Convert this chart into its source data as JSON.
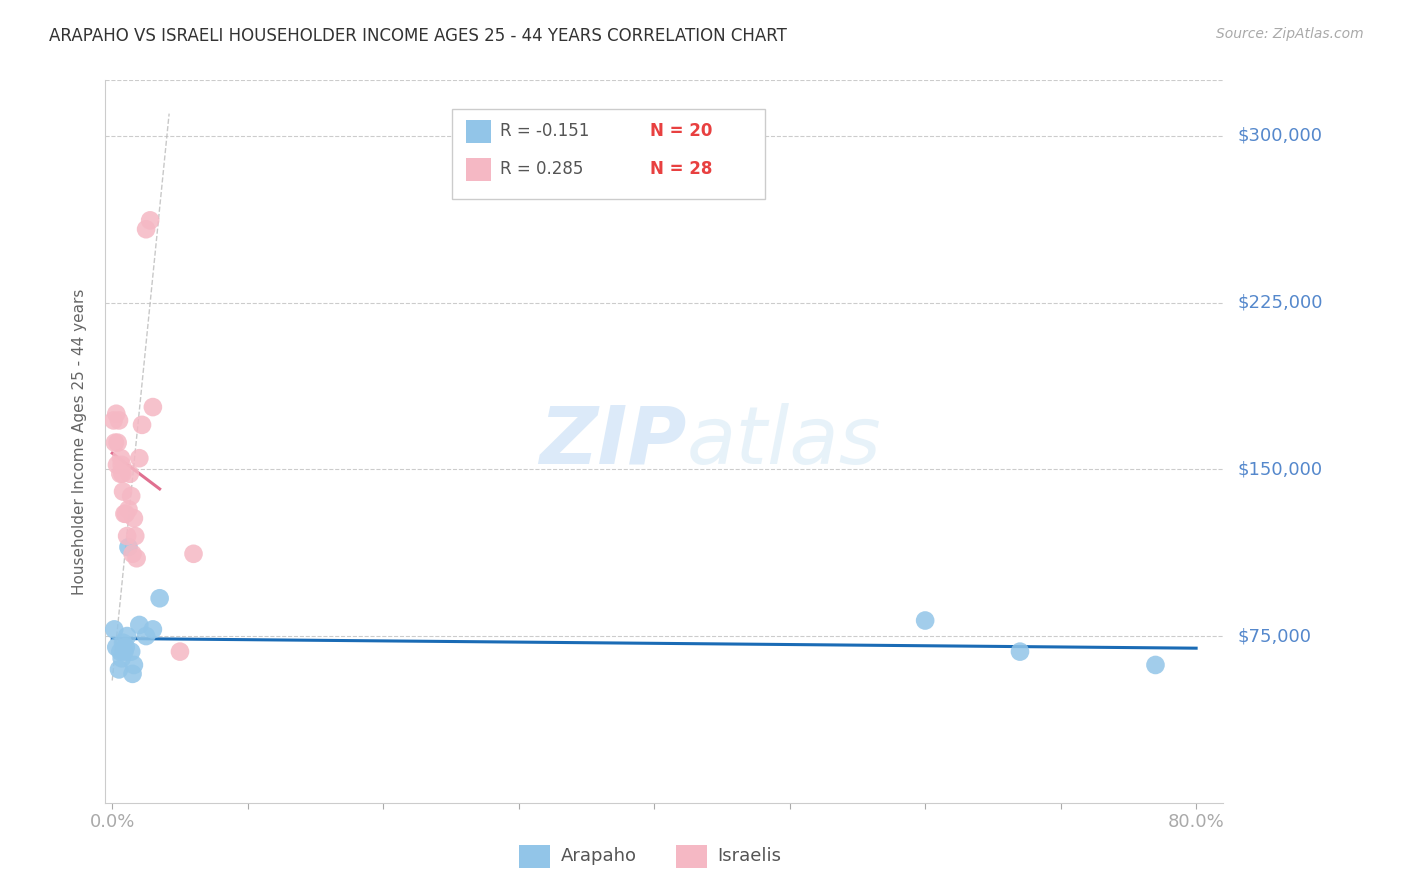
{
  "title": "ARAPAHO VS ISRAELI HOUSEHOLDER INCOME AGES 25 - 44 YEARS CORRELATION CHART",
  "source": "Source: ZipAtlas.com",
  "ylabel": "Householder Income Ages 25 - 44 years",
  "ytick_labels": [
    "$75,000",
    "$150,000",
    "$225,000",
    "$300,000"
  ],
  "ytick_values": [
    75000,
    150000,
    225000,
    300000
  ],
  "watermark_zip": "ZIP",
  "watermark_atlas": "atlas",
  "arapaho_color": "#92c5e8",
  "israeli_color": "#f5b8c4",
  "arapaho_line_color": "#1a6bb5",
  "israeli_line_color": "#e07090",
  "diag_line_color": "#cccccc",
  "background_color": "#ffffff",
  "arapaho_x": [
    0.15,
    0.3,
    0.5,
    0.6,
    0.7,
    0.8,
    0.9,
    1.0,
    1.1,
    1.2,
    1.4,
    1.5,
    1.6,
    2.0,
    2.5,
    3.0,
    3.5,
    60.0,
    67.0,
    77.0
  ],
  "arapaho_y": [
    78000,
    70000,
    60000,
    68000,
    65000,
    72000,
    68000,
    70000,
    75000,
    115000,
    68000,
    58000,
    62000,
    80000,
    75000,
    78000,
    92000,
    82000,
    68000,
    62000
  ],
  "israeli_x": [
    0.1,
    0.2,
    0.3,
    0.35,
    0.4,
    0.5,
    0.6,
    0.65,
    0.7,
    0.75,
    0.8,
    0.9,
    1.0,
    1.1,
    1.2,
    1.3,
    1.4,
    1.5,
    1.6,
    1.7,
    1.8,
    2.0,
    2.2,
    2.5,
    2.8,
    3.0,
    5.0,
    6.0
  ],
  "israeli_y": [
    172000,
    162000,
    175000,
    152000,
    162000,
    172000,
    148000,
    155000,
    152000,
    148000,
    140000,
    130000,
    130000,
    120000,
    132000,
    148000,
    138000,
    112000,
    128000,
    120000,
    110000,
    155000,
    170000,
    258000,
    262000,
    178000,
    68000,
    112000
  ],
  "xlim": [
    -0.5,
    82
  ],
  "ylim": [
    0,
    325000
  ],
  "legend_r1": "R = -0.151",
  "legend_n1": "N = 20",
  "legend_r2": "R = 0.285",
  "legend_n2": "N = 28",
  "legend1_color": "#5599dd",
  "legend2_color": "#e07090",
  "r_value_color": "#5599dd",
  "n_value_color": "#e05050"
}
